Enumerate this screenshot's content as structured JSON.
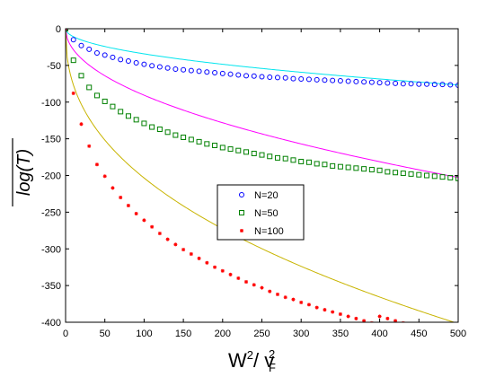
{
  "chart_data": {
    "type": "scatter",
    "xlabel_main": "W",
    "xlabel_sup1": "2",
    "xlabel_mid": "/ v",
    "xlabel_sub": "F",
    "xlabel_sup2": "2",
    "ylabel": "log(T)",
    "xlim": [
      0,
      500
    ],
    "ylim": [
      -400,
      0
    ],
    "x_ticks": [
      0,
      50,
      100,
      150,
      200,
      250,
      300,
      350,
      400,
      450,
      500
    ],
    "y_ticks": [
      0,
      -50,
      -100,
      -150,
      -200,
      -250,
      -300,
      -350,
      -400
    ],
    "grid": false,
    "legend_position": "center",
    "series": [
      {
        "name": "N=20",
        "marker": "circle",
        "color": "#0000ff",
        "fit_color": "#00e5ee",
        "fit": {
          "a": 3.424,
          "b": 0.5
        },
        "x": [
          0,
          10,
          20,
          30,
          40,
          50,
          60,
          70,
          80,
          90,
          100,
          110,
          120,
          130,
          140,
          150,
          160,
          170,
          180,
          190,
          200,
          210,
          220,
          230,
          240,
          250,
          260,
          270,
          280,
          290,
          300,
          310,
          320,
          330,
          340,
          350,
          360,
          370,
          380,
          390,
          400,
          410,
          420,
          430,
          440,
          450,
          460,
          470,
          480,
          490,
          500
        ],
        "y": [
          0,
          -15,
          -23,
          -28,
          -33,
          -36,
          -39,
          -42,
          -44,
          -46.5,
          -48.5,
          -50.5,
          -52,
          -53.5,
          -55,
          -56,
          -57,
          -58,
          -59,
          -60,
          -61,
          -62,
          -63,
          -64,
          -64.5,
          -65.5,
          -66,
          -66.5,
          -67,
          -68,
          -68.5,
          -69,
          -69.5,
          -70,
          -70.5,
          -71,
          -71.5,
          -72,
          -72.5,
          -73,
          -73.5,
          -74,
          -74.5,
          -75,
          -75,
          -75.5,
          -75.5,
          -76,
          -76,
          -76.5,
          -77
        ]
      },
      {
        "name": "N=50",
        "marker": "square",
        "color": "#008000",
        "fit_color": "#ff00ff",
        "fit": {
          "a": 9.062,
          "b": 0.5
        },
        "x": [
          0,
          10,
          20,
          30,
          40,
          50,
          60,
          70,
          80,
          90,
          100,
          110,
          120,
          130,
          140,
          150,
          160,
          170,
          180,
          190,
          200,
          210,
          220,
          230,
          240,
          250,
          260,
          270,
          280,
          290,
          300,
          310,
          320,
          330,
          340,
          350,
          360,
          370,
          380,
          390,
          400,
          410,
          420,
          430,
          440,
          450,
          460,
          470,
          480,
          490,
          500
        ],
        "y": [
          0,
          -43,
          -64,
          -80,
          -91,
          -99,
          -106,
          -113,
          -119,
          -124,
          -129,
          -134,
          -137,
          -141,
          -145,
          -148,
          -151,
          -154,
          -157,
          -159,
          -162,
          -164,
          -166,
          -168,
          -170,
          -172,
          -174,
          -176,
          -177,
          -179,
          -181,
          -182,
          -184,
          -185,
          -187,
          -188,
          -189,
          -190,
          -191,
          -192,
          -193,
          -195,
          -196,
          -197,
          -198,
          -199,
          -200,
          -201,
          -202,
          -203,
          -204
        ]
      },
      {
        "name": "N=100",
        "marker": "star",
        "color": "#ff0000",
        "fit_color": "#c8b400",
        "fit": {
          "a": 29.0,
          "b": 0.423
        },
        "x": [
          0,
          10,
          20,
          30,
          40,
          50,
          60,
          70,
          80,
          90,
          100,
          110,
          120,
          130,
          140,
          150,
          160,
          170,
          180,
          190,
          200,
          210,
          220,
          230,
          240,
          250,
          260,
          270,
          280,
          290,
          300,
          310,
          320,
          330,
          340,
          350,
          360,
          370,
          380,
          390,
          400,
          410,
          420,
          430
        ],
        "y": [
          0,
          -88,
          -130,
          -160,
          -185,
          -201,
          -217,
          -230,
          -241,
          -252,
          -261,
          -270,
          -279,
          -287,
          -294,
          -301,
          -307,
          -313,
          -319,
          -325,
          -330,
          -335,
          -340,
          -345,
          -349,
          -353,
          -358,
          -362,
          -366,
          -369,
          -373,
          -376,
          -380,
          -383,
          -386,
          -389,
          -392,
          -395,
          -398,
          -401,
          -392,
          -395,
          -398,
          -401
        ]
      }
    ]
  }
}
